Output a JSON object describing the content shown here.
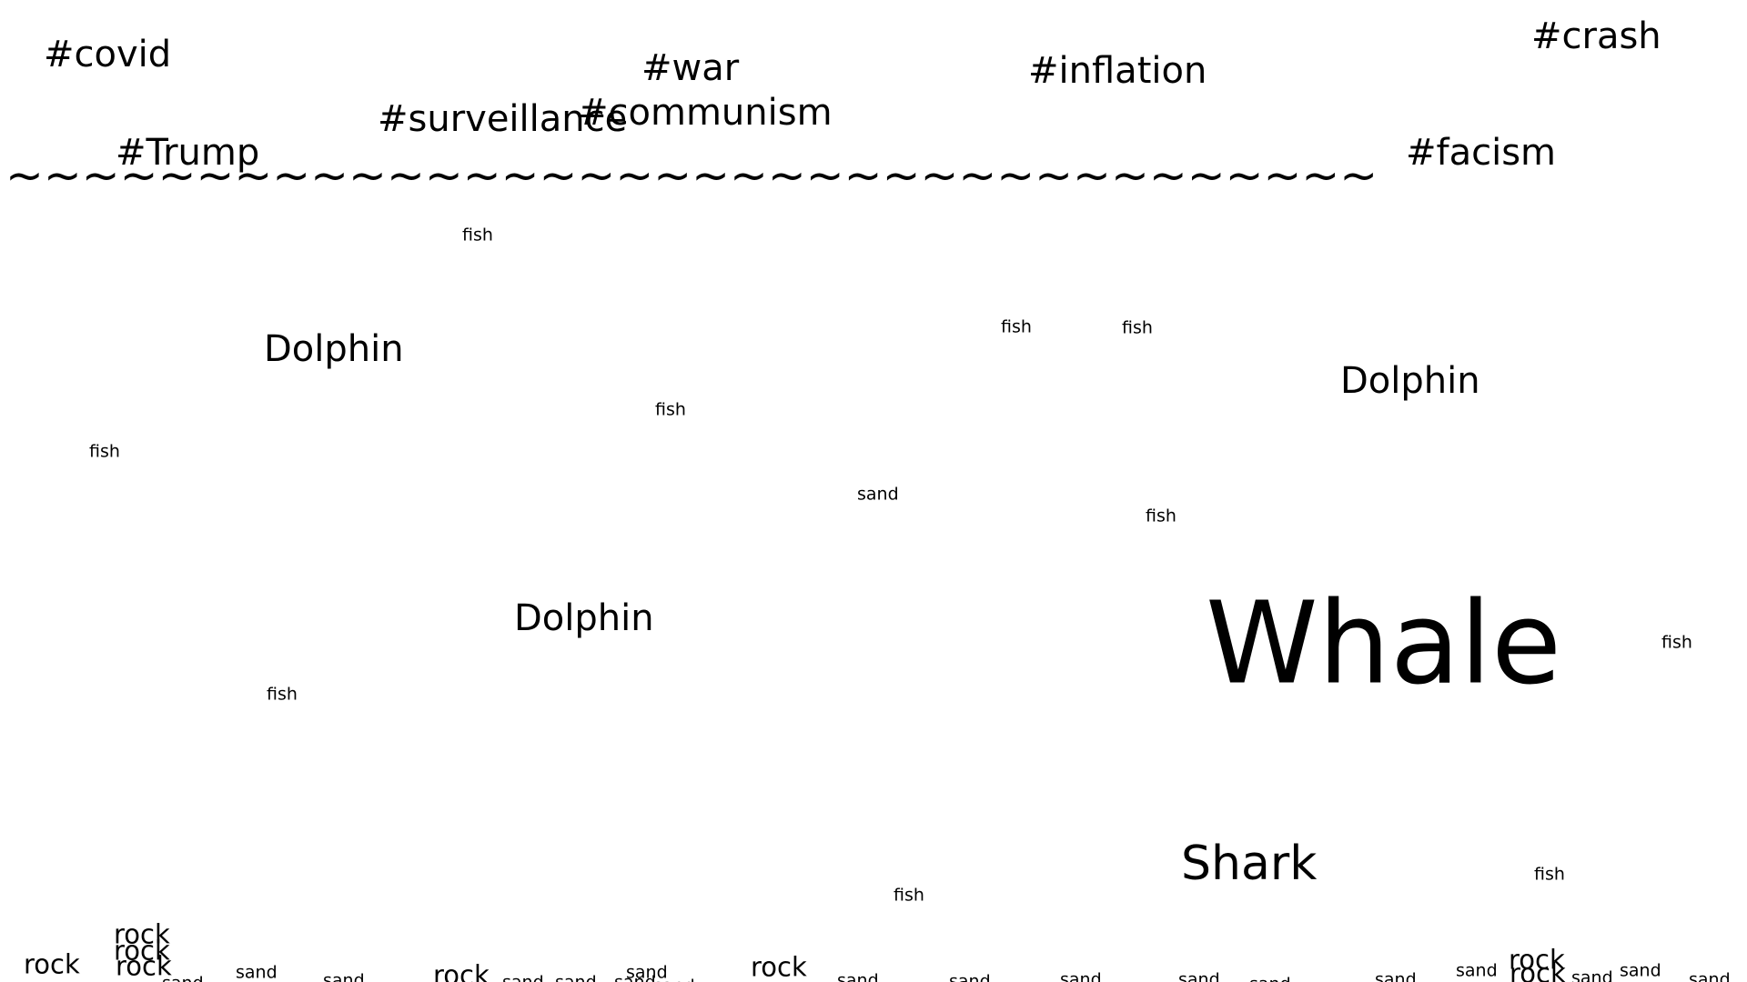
{
  "surface": {
    "waves": "~~~~~~~~~~~~~~~~~~~~~~~~~~~~~~~~~~~~",
    "hashtags": [
      "#covid",
      "#war",
      "#inflation",
      "#crash",
      "#surveillance",
      "#communism",
      "#Trump",
      "#facism"
    ]
  },
  "animals": {
    "whale": "Whale",
    "shark": "Shark",
    "dolphins": [
      "Dolphin",
      "Dolphin",
      "Dolphin"
    ],
    "fish": [
      "fish",
      "fish",
      "fish",
      "fish",
      "fish",
      "fish",
      "fish",
      "fish",
      "fish",
      "fish"
    ]
  },
  "seabed": {
    "rocks": [
      "rock",
      "rock",
      "rock",
      "rock",
      "rock",
      "rock",
      "rock",
      "rock"
    ],
    "sand": [
      "sand",
      "sand",
      "sand",
      "sand",
      "sand",
      "sand",
      "sand",
      "sand",
      "sand",
      "sand",
      "sand",
      "sand",
      "sand",
      "sand",
      "sand",
      "sand",
      "sand",
      "sand",
      "sand"
    ]
  },
  "colors": {
    "background": "#ffffff",
    "text": "#000000"
  }
}
